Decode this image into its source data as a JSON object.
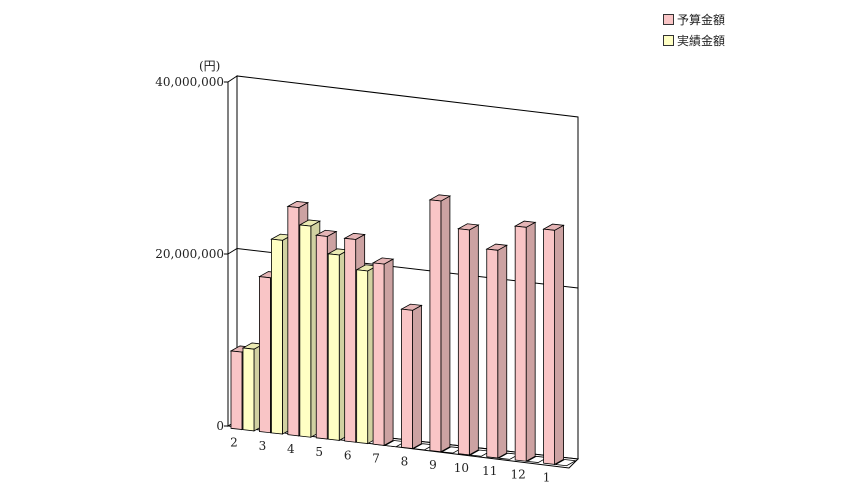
{
  "chart_data": {
    "type": "bar",
    "unit_label": "(円)",
    "categories": [
      "2",
      "3",
      "4",
      "5",
      "6",
      "7",
      "8",
      "9",
      "10",
      "11",
      "12",
      "1"
    ],
    "ylim": [
      0,
      40000000
    ],
    "yticks": [
      {
        "value": 0,
        "label": "0"
      },
      {
        "value": 20000000,
        "label": "20,000,000"
      },
      {
        "value": 40000000,
        "label": "40,000,000"
      }
    ],
    "grid": true,
    "legend_position": "top-right",
    "series": [
      {
        "name": "予算金額",
        "color": "#f9c5c6",
        "values": [
          9000000,
          18000000,
          26500000,
          23500000,
          23500000,
          21000000,
          16000000,
          29000000,
          26000000,
          24000000,
          27000000,
          27000000
        ]
      },
      {
        "name": "実績金額",
        "color": "#ffffc4",
        "values": [
          9500000,
          22500000,
          24500000,
          21500000,
          20000000,
          null,
          null,
          null,
          null,
          null,
          null,
          null
        ]
      }
    ]
  }
}
